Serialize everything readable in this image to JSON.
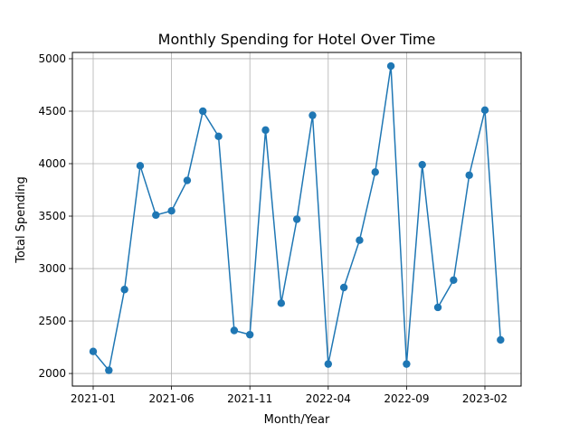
{
  "chart_data": {
    "type": "line",
    "title": "Monthly Spending for Hotel Over Time",
    "xlabel": "Month/Year",
    "ylabel": "Total Spending",
    "x_tick_labels": [
      "2021-01",
      "2021-06",
      "2021-11",
      "2022-04",
      "2022-09",
      "2023-02"
    ],
    "x_tick_months": [
      "2021-01",
      "2021-06",
      "2021-11",
      "2022-04",
      "2022-09",
      "2023-02"
    ],
    "y_ticks": [
      2000,
      2500,
      3000,
      3500,
      4000,
      4500,
      5000
    ],
    "ylim": [
      1880,
      5060
    ],
    "xlim": [
      "2020-12",
      "2023-04"
    ],
    "grid": true,
    "line_color": "#1f77b4",
    "series": [
      {
        "x": [
          "2021-01",
          "2021-02",
          "2021-03",
          "2021-04",
          "2021-05",
          "2021-06",
          "2021-07",
          "2021-08",
          "2021-09",
          "2021-10",
          "2021-11",
          "2021-12",
          "2022-01",
          "2022-02",
          "2022-03",
          "2022-04",
          "2022-05",
          "2022-06",
          "2022-07",
          "2022-08",
          "2022-09",
          "2022-10",
          "2022-11",
          "2022-12",
          "2023-01",
          "2023-02",
          "2023-03"
        ],
        "values": [
          2210,
          2030,
          2800,
          3980,
          3510,
          3550,
          3840,
          4500,
          4260,
          2410,
          2370,
          4320,
          2670,
          3470,
          4460,
          2090,
          2820,
          3270,
          3920,
          4930,
          2090,
          3990,
          2630,
          2890,
          3890,
          4510,
          2320
        ]
      }
    ]
  }
}
